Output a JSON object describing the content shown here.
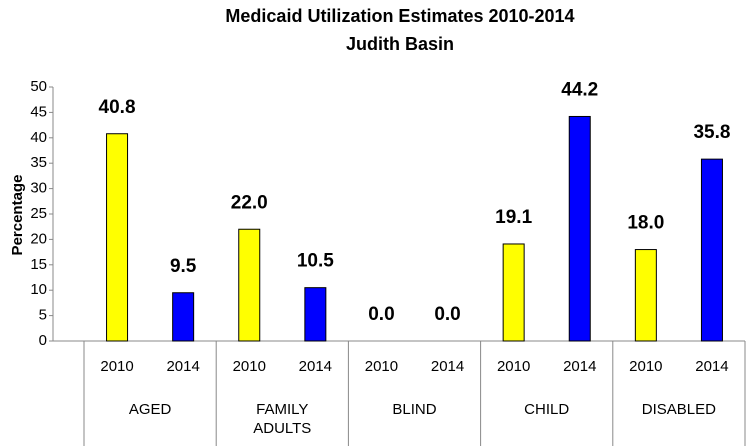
{
  "chart_data": {
    "type": "bar",
    "title": "Medicaid Utilization Estimates 2010-2014",
    "subtitle": "Judith Basin",
    "y_label": "Percentage",
    "categories": [
      "AGED",
      "FAMILY ADULTS",
      "BLIND",
      "CHILD",
      "DISABLED"
    ],
    "series": [
      {
        "name": "2010",
        "color": "#ffff00",
        "values": [
          40.8,
          22,
          0,
          19.1,
          18
        ],
        "value_labels": [
          "40.8",
          "22.0",
          "0.0",
          "19.1",
          "18.0"
        ]
      },
      {
        "name": "2014",
        "color": "#0000ff",
        "values": [
          9.5,
          10.5,
          0,
          44.2,
          35.8
        ],
        "value_labels": [
          "9.5",
          "10.5",
          "0.0",
          "44.2",
          "35.8"
        ]
      }
    ],
    "ylim": [
      0,
      50
    ],
    "yticks": [
      0,
      5,
      10,
      15,
      20,
      25,
      30,
      35,
      40,
      45,
      50
    ],
    "grid": false
  }
}
